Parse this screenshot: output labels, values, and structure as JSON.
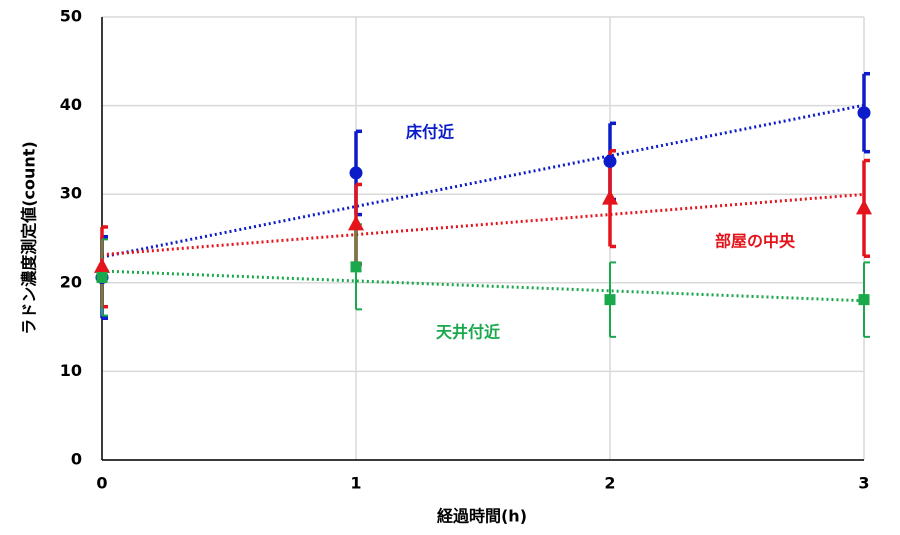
{
  "chart_data": {
    "type": "scatter",
    "x_label": "経過時間(h)",
    "y_label": "ラドン濃度測定値(count)",
    "xlim": [
      0,
      3
    ],
    "xticks": [
      0,
      1,
      2,
      3
    ],
    "ylim": [
      0,
      50
    ],
    "yticks": [
      0,
      10,
      20,
      30,
      40,
      50
    ],
    "grid": true,
    "trendline": "linear",
    "x": [
      0,
      1,
      2,
      3
    ],
    "series": [
      {
        "name": "床付近",
        "color": "#0c1cc8",
        "marker": "circle",
        "values": [
          20.6,
          32.4,
          33.7,
          39.2
        ],
        "errors": [
          4.6,
          4.7,
          4.3,
          4.4
        ]
      },
      {
        "name": "部屋の中央",
        "color": "#e4141c",
        "marker": "triangle",
        "values": [
          21.8,
          26.6,
          29.5,
          28.4
        ],
        "errors": [
          4.5,
          4.5,
          5.4,
          5.4
        ]
      },
      {
        "name": "天井付近",
        "color": "#1aa84c",
        "marker": "square",
        "values": [
          20.6,
          21.8,
          18.1,
          18.1
        ],
        "errors": [
          4.3,
          4.8,
          4.2,
          4.2
        ]
      }
    ]
  }
}
